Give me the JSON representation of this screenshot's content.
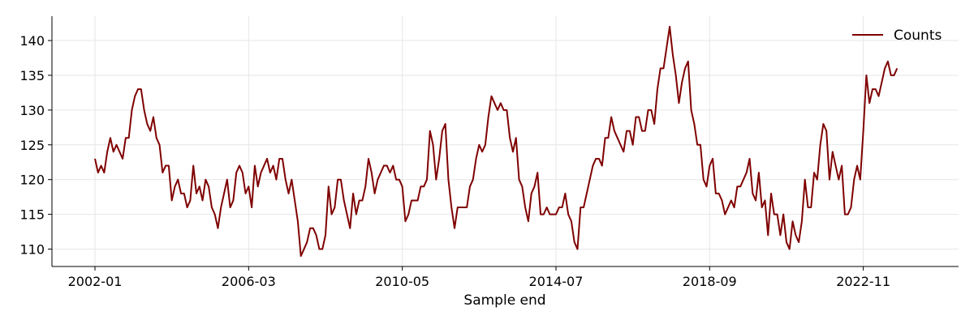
{
  "chart_data": {
    "type": "line",
    "title": "",
    "xlabel": "Sample end",
    "ylabel": "",
    "x_ticks": [
      "2002-01",
      "2006-03",
      "2010-05",
      "2014-07",
      "2018-09",
      "2022-11"
    ],
    "y_ticks": [
      110,
      115,
      120,
      125,
      130,
      135,
      140
    ],
    "xlim": [
      "2000-11",
      "2025-06"
    ],
    "ylim": [
      107.5,
      143.5
    ],
    "grid": true,
    "legend_position": "top-right",
    "series": [
      {
        "name": "Counts",
        "color": "#7f0000",
        "x_start": "2002-01",
        "x_step_months": 1,
        "values": [
          123,
          121,
          122,
          121,
          124,
          126,
          124,
          125,
          124,
          123,
          126,
          126,
          130,
          132,
          133,
          133,
          130,
          128,
          127,
          129,
          126,
          125,
          121,
          122,
          122,
          117,
          119,
          120,
          118,
          118,
          116,
          117,
          122,
          118,
          119,
          117,
          120,
          119,
          116,
          115,
          113,
          116,
          118,
          120,
          116,
          117,
          121,
          122,
          121,
          118,
          119,
          116,
          122,
          119,
          121,
          122,
          123,
          121,
          122,
          120,
          123,
          123,
          120,
          118,
          120,
          117,
          114,
          109,
          110,
          111,
          113,
          113,
          112,
          110,
          110,
          112,
          119,
          115,
          116,
          120,
          120,
          117,
          115,
          113,
          118,
          115,
          117,
          117,
          119,
          123,
          121,
          118,
          120,
          121,
          122,
          122,
          121,
          122,
          120,
          120,
          119,
          114,
          115,
          117,
          117,
          117,
          119,
          119,
          120,
          127,
          125,
          120,
          123,
          127,
          128,
          120,
          116,
          113,
          116,
          116,
          116,
          116,
          119,
          120,
          123,
          125,
          124,
          125,
          129,
          132,
          131,
          130,
          131,
          130,
          130,
          126,
          124,
          126,
          120,
          119,
          116,
          114,
          118,
          119,
          121,
          115,
          115,
          116,
          115,
          115,
          115,
          116,
          116,
          118,
          115,
          114,
          111,
          110,
          116,
          116,
          118,
          120,
          122,
          123,
          123,
          122,
          126,
          126,
          129,
          127,
          126,
          125,
          124,
          127,
          127,
          125,
          129,
          129,
          127,
          127,
          130,
          130,
          128,
          133,
          136,
          136,
          139,
          142,
          138,
          135,
          131,
          134,
          136,
          137,
          130,
          128,
          125,
          125,
          120,
          119,
          122,
          123,
          118,
          118,
          117,
          115,
          116,
          117,
          116,
          119,
          119,
          120,
          121,
          123,
          118,
          117,
          121,
          116,
          117,
          112,
          118,
          115,
          115,
          112,
          115,
          111,
          110,
          114,
          112,
          111,
          114,
          120,
          116,
          116,
          121,
          120,
          125,
          128,
          127,
          120,
          124,
          122,
          120,
          122,
          115,
          115,
          116,
          120,
          122,
          120,
          127,
          135,
          131,
          133,
          133,
          132,
          134,
          136,
          137,
          135,
          135,
          136
        ]
      }
    ]
  }
}
